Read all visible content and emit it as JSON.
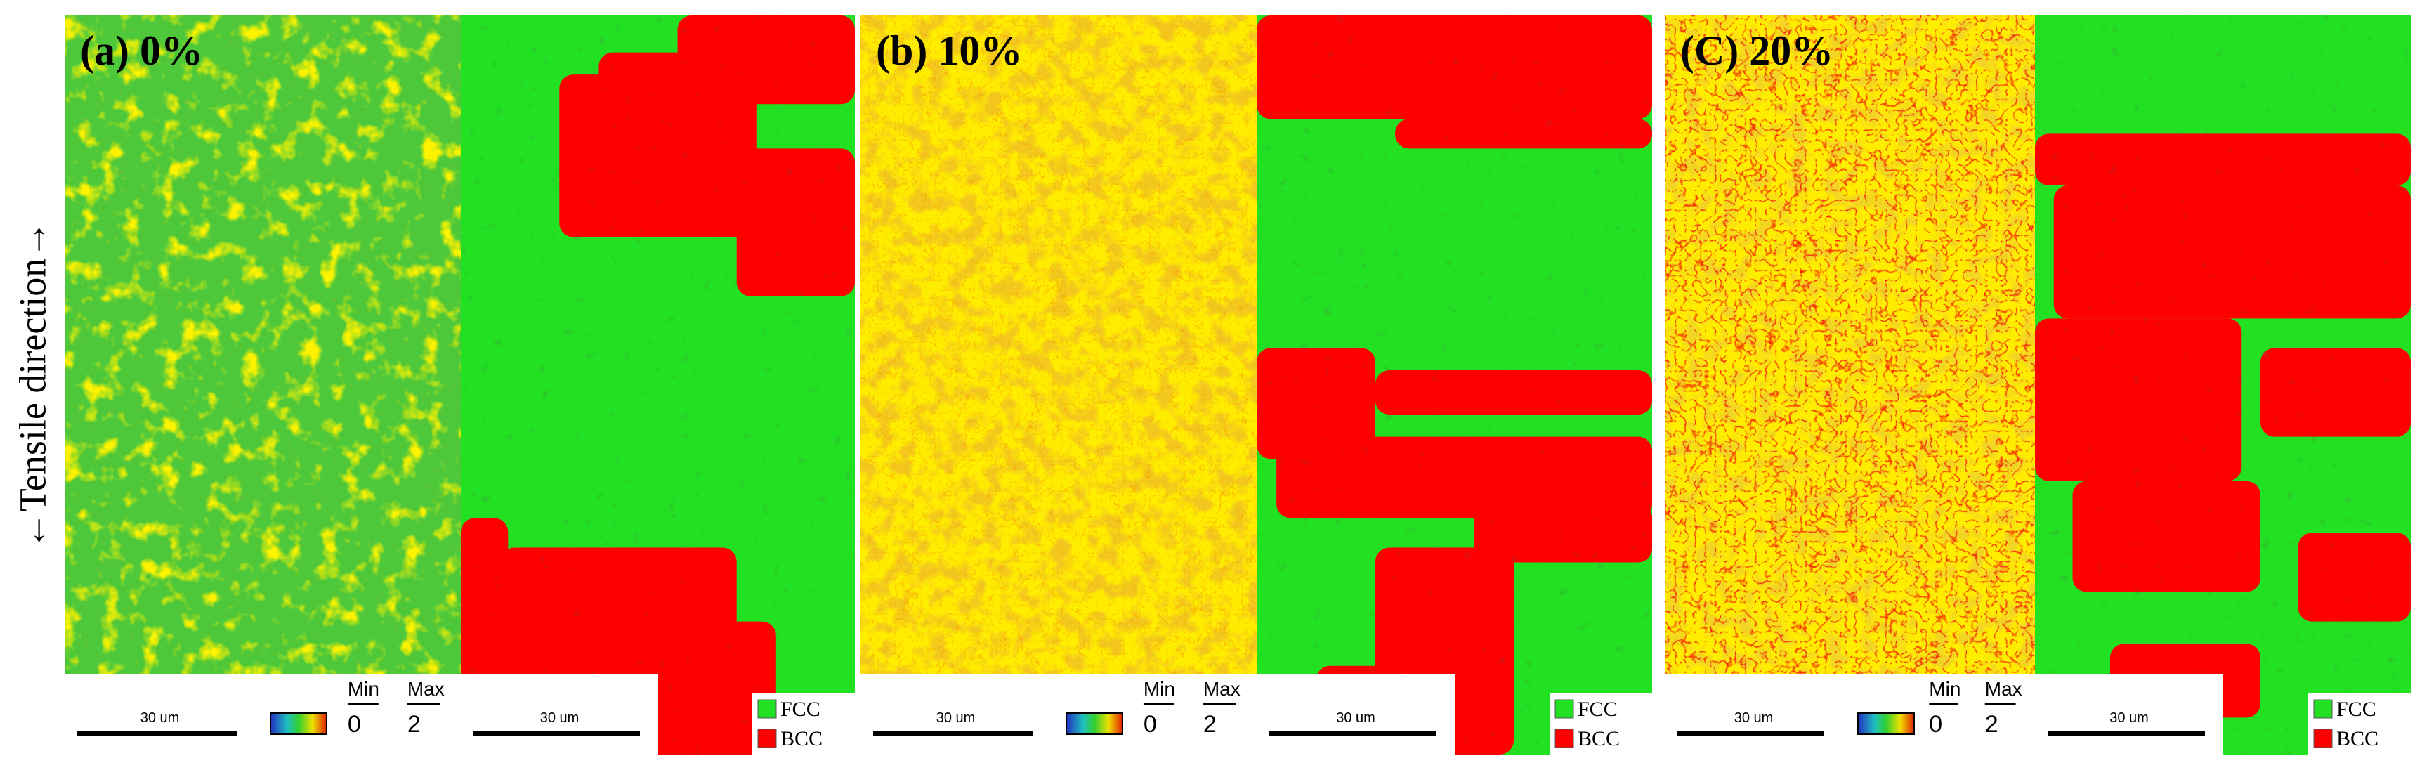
{
  "side_label": "←Tensile direction→",
  "panels": [
    {
      "label": "(a) 0%",
      "kam_scale": "30 um",
      "kam_legend": {
        "min_label": "Min",
        "max_label": "Max",
        "min": "0",
        "max": "2"
      },
      "phase_scale": "30 um",
      "phases": [
        "FCC",
        "BCC"
      ]
    },
    {
      "label": "(b) 10%",
      "kam_scale": "30 um",
      "kam_legend": {
        "min_label": "Min",
        "max_label": "Max",
        "min": "0",
        "max": "2"
      },
      "phase_scale": "30 um",
      "phases": [
        "FCC",
        "BCC"
      ]
    },
    {
      "label": "(C) 20%",
      "kam_scale": "30 um",
      "kam_legend": {
        "min_label": "Min",
        "max_label": "Max",
        "min": "0",
        "max": "2"
      },
      "phase_scale": "30 um",
      "phases": [
        "FCC",
        "BCC"
      ]
    }
  ]
}
